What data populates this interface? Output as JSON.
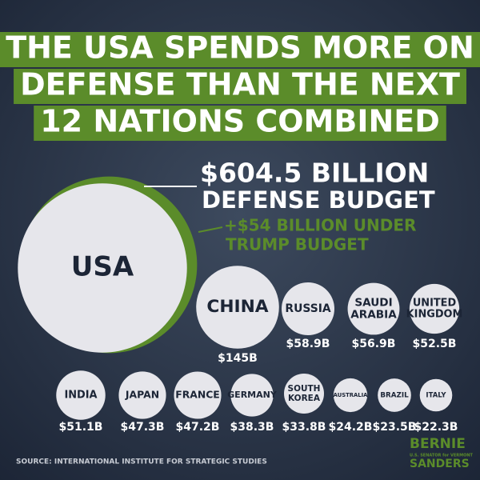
{
  "chart_data": {
    "type": "bubble",
    "title": [
      "THE USA SPENDS MORE ON",
      "DEFENSE THAN THE NEXT",
      "12 NATIONS COMBINED"
    ],
    "categories": [
      [
        "USA"
      ],
      [
        "CHINA"
      ],
      [
        "RUSSIA"
      ],
      [
        "SAUDI",
        "ARABIA"
      ],
      [
        "UNITED",
        "KINGDOM"
      ],
      [
        "INDIA"
      ],
      [
        "JAPAN"
      ],
      [
        "FRANCE"
      ],
      [
        "GERMANY"
      ],
      [
        "SOUTH",
        "KOREA"
      ],
      [
        "AUSTRALIA"
      ],
      [
        "BRAZIL"
      ],
      [
        "ITALY"
      ]
    ],
    "values": [
      604.5,
      145,
      58.9,
      56.9,
      52.5,
      51.1,
      47.3,
      47.2,
      38.3,
      33.8,
      24.2,
      23.5,
      22.3
    ],
    "value_labels": [
      "$604.5 BILLION",
      "$145B",
      "$58.9B",
      "$56.9B",
      "$52.5B",
      "$51.1B",
      "$47.3B",
      "$47.2B",
      "$38.3B",
      "$33.8B",
      "$24.2B",
      "$23.5B",
      "$22.3B"
    ],
    "value_note": "DEFENSE BUDGET",
    "increase": {
      "value": 54,
      "label": [
        "+$54 BILLION UNDER",
        "TRUMP BUDGET"
      ]
    },
    "color": "#e6e6eb",
    "increase_color": "#5b8c2a",
    "source": "SOURCE: INTERNATIONAL INSTITUTE FOR STRATEGIC STUDIES",
    "logo": [
      "BERNIE",
      "U.S. SENATOR for VERMONT",
      "SANDERS"
    ]
  }
}
